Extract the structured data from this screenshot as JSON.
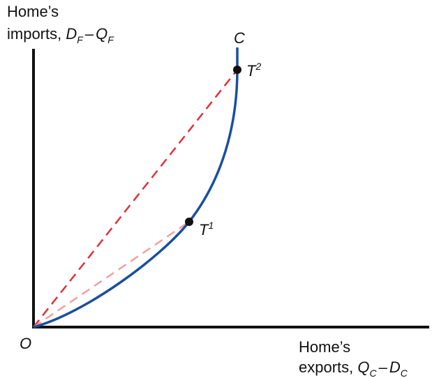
{
  "y_axis_label": {
    "line1": "Home’s",
    "line2_prefix": "imports, ",
    "term1": "D",
    "term1_sub": "F",
    "minus": "–",
    "term2": "Q",
    "term2_sub": "F"
  },
  "x_axis_label": {
    "line1": "Home’s",
    "line2_prefix": "exports, ",
    "term1": "Q",
    "term1_sub": "C",
    "minus": "–",
    "term2": "D",
    "term2_sub": "C"
  },
  "origin_label": "O",
  "curve_label": "C",
  "point_t1": {
    "base": "T",
    "sup": "1"
  },
  "point_t2": {
    "base": "T",
    "sup": "2"
  },
  "colors": {
    "axis": "#111111",
    "curve": "#1a4f9e",
    "ray_t2": "#e0303a",
    "ray_t1": "#f2a0a0",
    "point": "#111111"
  }
}
